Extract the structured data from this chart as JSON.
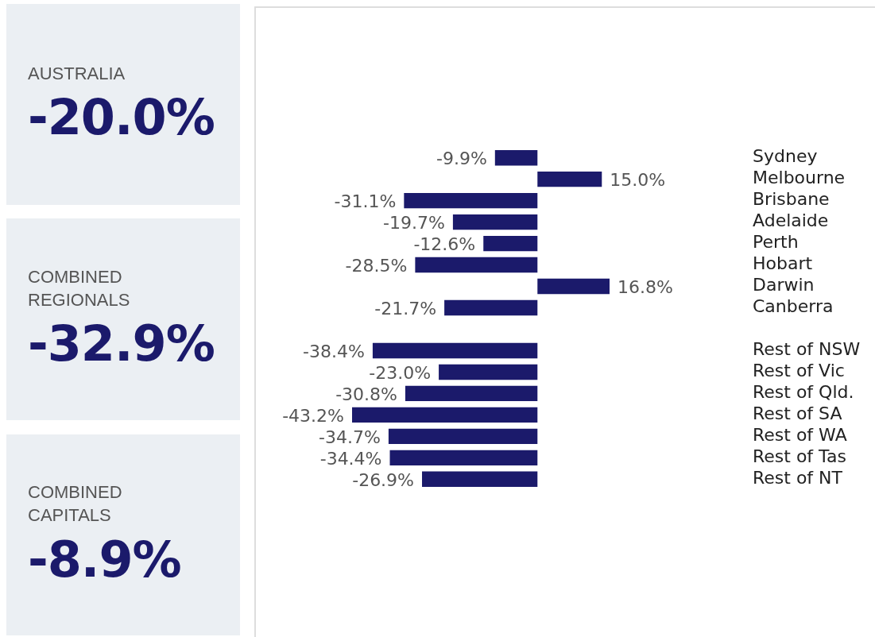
{
  "chart_data": [
    {
      "type": "other",
      "title": "AUSTRALIA",
      "subtitle": "-20.0%"
    },
    {
      "type": "other",
      "title": "COMBINED REGIONALS",
      "subtitle": "-32.9%"
    },
    {
      "type": "other",
      "title": "COMBINED CAPITALS",
      "subtitle": "-8.9%"
    },
    {
      "type": "bar",
      "orientation": "horizontal",
      "tick_labels": "y",
      "color": "#1b1a6b",
      "categories": [
        "Sydney",
        "Melbourne",
        "Brisbane",
        "Adelaide",
        "Perth",
        "Hobart",
        "Darwin",
        "Canberra",
        null,
        "Rest of NSW",
        "Rest of Vic",
        "Rest of Qld.",
        "Rest of SA",
        "Rest of WA",
        "Rest of Tas",
        "Rest of NT"
      ],
      "values": [
        -9.9,
        15.0,
        -31.1,
        -19.7,
        -12.6,
        -28.5,
        16.8,
        -21.7,
        null,
        -38.4,
        -23.0,
        -30.8,
        -43.2,
        -34.7,
        -34.4,
        -26.9
      ],
      "value_labels": [
        "-9.9%",
        "15.0%",
        "-31.1%",
        "-19.7%",
        "-12.6%",
        "-28.5%",
        "16.8%",
        "-21.7%",
        null,
        "-38.4%",
        "-23.0%",
        "-30.8%",
        "-43.2%",
        "-34.7%",
        "-34.4%",
        "-26.9%"
      ]
    }
  ]
}
